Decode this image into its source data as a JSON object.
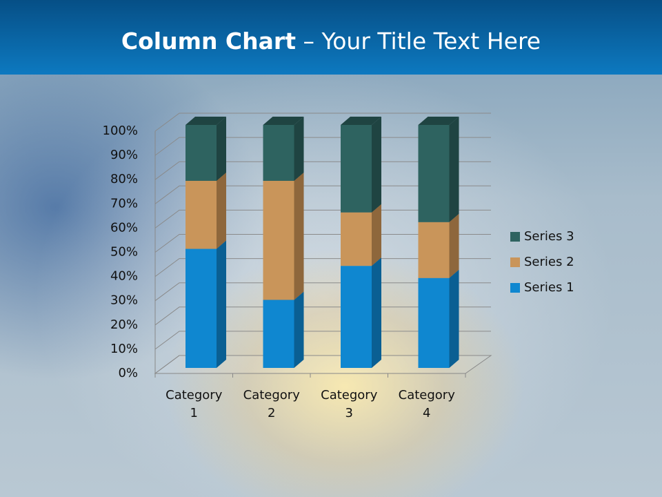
{
  "chart_data": {
    "type": "stacked_bar_3d",
    "title": {
      "bold": "Column Chart",
      "rest": "– Your Title Text Here"
    },
    "categories": [
      "Category 1",
      "Category 2",
      "Category 3",
      "Category 4"
    ],
    "series": [
      {
        "name": "Series 1",
        "color": "#0f87d0",
        "side": "#0a5f93",
        "values": [
          49,
          28,
          42,
          37
        ]
      },
      {
        "name": "Series 2",
        "color": "#c9955a",
        "side": "#8e673c",
        "values": [
          28,
          49,
          22,
          23
        ]
      },
      {
        "name": "Series 3",
        "color": "#2e6360",
        "side": "#1f4442",
        "values": [
          23,
          23,
          36,
          40
        ]
      }
    ],
    "ylim": [
      0,
      100
    ],
    "yticks": [
      {
        "value": 0,
        "label": "0%"
      },
      {
        "value": 10,
        "label": "10%"
      },
      {
        "value": 20,
        "label": "20%"
      },
      {
        "value": 30,
        "label": "30%"
      },
      {
        "value": 40,
        "label": "40%"
      },
      {
        "value": 50,
        "label": "50%"
      },
      {
        "value": 60,
        "label": "60%"
      },
      {
        "value": 70,
        "label": "70%"
      },
      {
        "value": 80,
        "label": "80%"
      },
      {
        "value": 90,
        "label": "90%"
      },
      {
        "value": 100,
        "label": "100%"
      }
    ],
    "grid": true,
    "legend": "right"
  }
}
